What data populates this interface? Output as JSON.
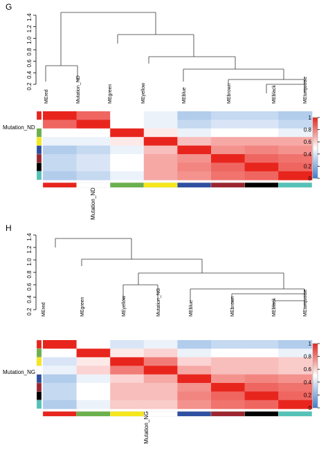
{
  "colors": {
    "low": "#3f7fd0",
    "mid": "#ffffff",
    "high": "#e8251d"
  },
  "chart_data": [
    {
      "type": "heatmap",
      "panel": "G",
      "dendrogram_axis_ticks": [
        "0.2",
        "0.4",
        "0.6",
        "0.8",
        "1.0",
        "1.2",
        "1.4"
      ],
      "dendrogram_leaves": [
        "MEred",
        "Mutation_ND",
        "MEgreen",
        "MEyellow",
        "MEblue",
        "MEbrown",
        "MEblack",
        "MEturquoise"
      ],
      "column_colors": [
        "#e8251d",
        "#ffffff",
        "#6ab04c",
        "#f5e71c",
        "#2f4fa0",
        "#9b2630",
        "#000000",
        "#55c2b8"
      ],
      "row_colors": [
        "#e8251d",
        "#ffffff",
        "#6ab04c",
        "#f5e71c",
        "#2f4fa0",
        "#9b2630",
        "#000000",
        "#55c2b8"
      ],
      "row_label": "Mutation_ND",
      "column_label": "Mutation_ND",
      "legend_ticks": [
        "0",
        "0.2",
        "0.4",
        "0.6",
        "0.8",
        "1"
      ],
      "values": [
        [
          1.0,
          0.85,
          0.5,
          0.45,
          0.3,
          0.35,
          0.35,
          0.3
        ],
        [
          0.85,
          1.0,
          0.5,
          0.45,
          0.35,
          0.4,
          0.4,
          0.35
        ],
        [
          0.5,
          0.5,
          1.0,
          0.55,
          0.45,
          0.5,
          0.5,
          0.45
        ],
        [
          0.45,
          0.45,
          0.55,
          1.0,
          0.65,
          0.7,
          0.7,
          0.7
        ],
        [
          0.3,
          0.35,
          0.45,
          0.65,
          1.0,
          0.75,
          0.78,
          0.75
        ],
        [
          0.35,
          0.4,
          0.5,
          0.7,
          0.75,
          1.0,
          0.85,
          0.82
        ],
        [
          0.35,
          0.4,
          0.5,
          0.7,
          0.78,
          0.85,
          1.0,
          0.85
        ],
        [
          0.3,
          0.35,
          0.45,
          0.7,
          0.75,
          0.82,
          0.85,
          1.0
        ]
      ]
    },
    {
      "type": "heatmap",
      "panel": "H",
      "dendrogram_axis_ticks": [
        "0.2",
        "0.4",
        "0.6",
        "0.8",
        "1.0",
        "1.2",
        "1.4"
      ],
      "dendrogram_leaves": [
        "MEred",
        "MEgreen",
        "MEyellow",
        "Mutation_NG",
        "MEblue",
        "MEbrown",
        "MEblack",
        "MEturquoise"
      ],
      "column_colors": [
        "#e8251d",
        "#6ab04c",
        "#f5e71c",
        "#ffffff",
        "#2f4fa0",
        "#9b2630",
        "#000000",
        "#55c2b8"
      ],
      "row_colors": [
        "#e8251d",
        "#6ab04c",
        "#f5e71c",
        "#ffffff",
        "#2f4fa0",
        "#9b2630",
        "#000000",
        "#55c2b8"
      ],
      "row_label": "Mutation_NG",
      "column_label": "Mutation_NG",
      "legend_ticks": [
        "0",
        "0.2",
        "0.4",
        "0.6",
        "0.8",
        "1"
      ],
      "values": [
        [
          1.0,
          0.5,
          0.4,
          0.45,
          0.3,
          0.35,
          0.35,
          0.3
        ],
        [
          0.5,
          1.0,
          0.55,
          0.6,
          0.45,
          0.5,
          0.5,
          0.45
        ],
        [
          0.4,
          0.55,
          1.0,
          0.8,
          0.6,
          0.65,
          0.65,
          0.62
        ],
        [
          0.45,
          0.6,
          0.8,
          1.0,
          0.7,
          0.65,
          0.65,
          0.62
        ],
        [
          0.3,
          0.45,
          0.6,
          0.7,
          1.0,
          0.75,
          0.78,
          0.75
        ],
        [
          0.35,
          0.5,
          0.65,
          0.65,
          0.75,
          1.0,
          0.85,
          0.82
        ],
        [
          0.35,
          0.5,
          0.65,
          0.65,
          0.78,
          0.85,
          1.0,
          0.85
        ],
        [
          0.3,
          0.45,
          0.62,
          0.62,
          0.75,
          0.82,
          0.85,
          1.0
        ]
      ]
    }
  ]
}
